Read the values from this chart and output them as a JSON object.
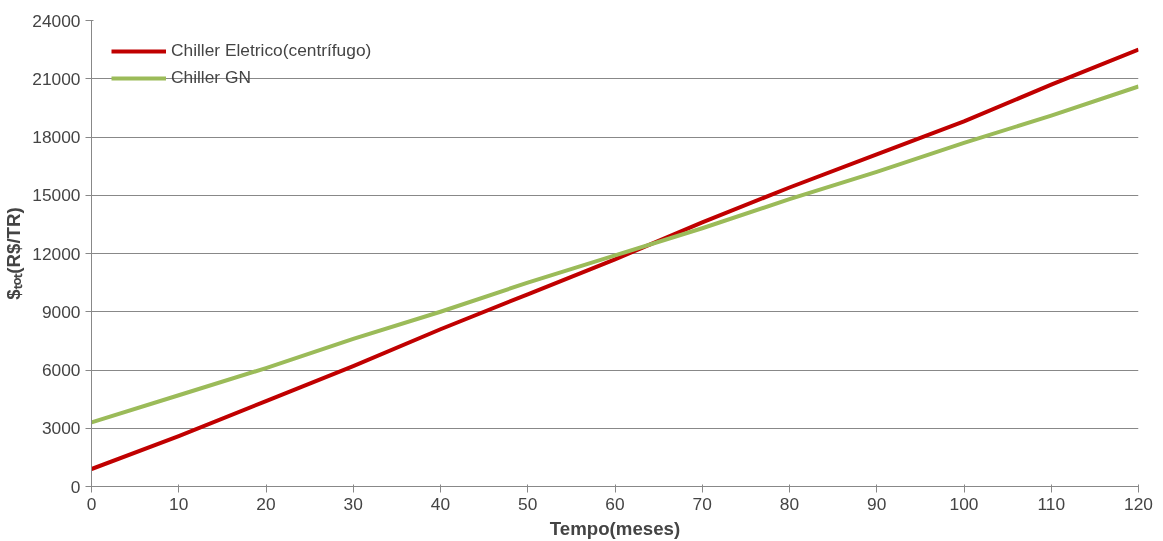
{
  "chart_data": {
    "type": "line",
    "xlabel": "Tempo(meses)",
    "ylabel": "$ₜₒₜ(R$/TR)",
    "x": [
      0,
      10,
      20,
      30,
      40,
      50,
      60,
      70,
      80,
      90,
      100,
      110,
      120
    ],
    "series": [
      {
        "name": "Chiller Eletrico(centrífugo)",
        "color": "#c00000",
        "values": [
          900,
          2600,
          4400,
          6200,
          8100,
          9900,
          11700,
          13600,
          15400,
          17100,
          18800,
          20700,
          22500
        ]
      },
      {
        "name": "Chiller GN",
        "color": "#9bbb59",
        "values": [
          3300,
          4700,
          6100,
          7600,
          9000,
          10500,
          11900,
          13300,
          14800,
          16200,
          17700,
          19100,
          20600
        ]
      }
    ],
    "xlim": [
      0,
      120
    ],
    "xticks": [
      0,
      10,
      20,
      30,
      40,
      50,
      60,
      70,
      80,
      90,
      100,
      110,
      120
    ],
    "ylim": [
      0,
      24000
    ],
    "yticks": [
      0,
      3000,
      6000,
      9000,
      12000,
      15000,
      18000,
      21000,
      24000
    ],
    "grid": "y",
    "legend": "top left",
    "marker": "none",
    "line_style": "solid"
  }
}
